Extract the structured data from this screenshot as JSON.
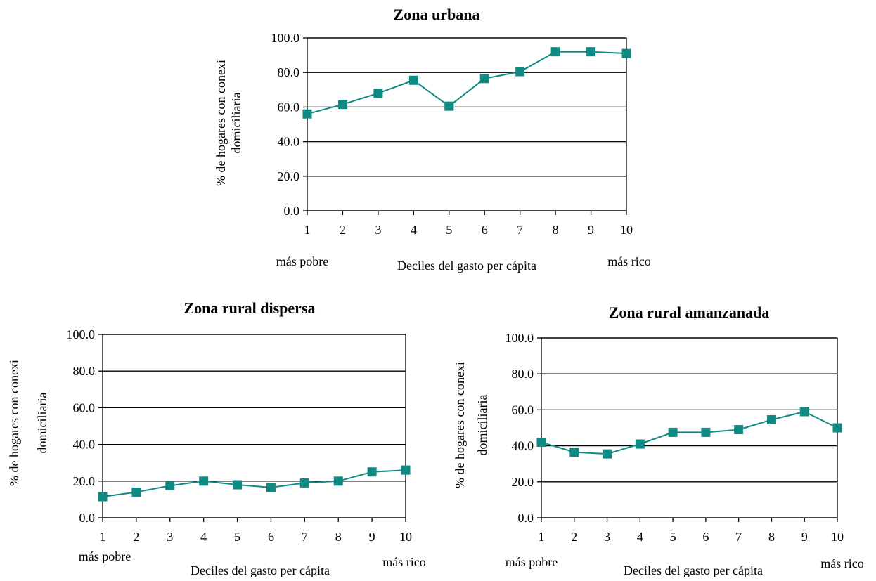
{
  "colors": {
    "series": "#0f8a82",
    "axis": "#000000",
    "background": "#ffffff"
  },
  "chart_data": [
    {
      "type": "line",
      "title": "Zona urbana",
      "xlabel": "Deciles del gasto per cápita",
      "ylabel_lines": [
        "% de hogares con conexi",
        "domiciliaria"
      ],
      "x_left_note": "más pobre",
      "x_right_note": "más rico",
      "categories": [
        "1",
        "2",
        "3",
        "4",
        "5",
        "6",
        "7",
        "8",
        "9",
        "10"
      ],
      "yticks": [
        "0.0",
        "20.0",
        "40.0",
        "60.0",
        "80.0",
        "100.0"
      ],
      "ylim": [
        0,
        100
      ],
      "grid": true,
      "marker": "square",
      "values": [
        56.0,
        61.5,
        68.0,
        75.5,
        60.5,
        76.5,
        80.5,
        92.0,
        92.0,
        91.0
      ]
    },
    {
      "type": "line",
      "title": "Zona rural dispersa",
      "xlabel": "Deciles del gasto per cápita",
      "ylabel_lines": [
        "% de hogares con conexi",
        "domiciliaria"
      ],
      "x_left_note": "más pobre",
      "x_right_note": "más rico",
      "categories": [
        "1",
        "2",
        "3",
        "4",
        "5",
        "6",
        "7",
        "8",
        "9",
        "10"
      ],
      "yticks": [
        "0.0",
        "20.0",
        "40.0",
        "60.0",
        "80.0",
        "100.0"
      ],
      "ylim": [
        0,
        100
      ],
      "grid": true,
      "marker": "square",
      "values": [
        11.5,
        14.0,
        17.5,
        20.0,
        18.0,
        16.5,
        19.0,
        20.0,
        25.0,
        26.0
      ]
    },
    {
      "type": "line",
      "title": "Zona rural amanzanada",
      "xlabel": "Deciles del gasto per cápita",
      "ylabel_lines": [
        "% de hogares con conexi",
        "domiciliaria"
      ],
      "x_left_note": "más pobre",
      "x_right_note": "más rico",
      "categories": [
        "1",
        "2",
        "3",
        "4",
        "5",
        "6",
        "7",
        "8",
        "9",
        "10"
      ],
      "yticks": [
        "0.0",
        "20.0",
        "40.0",
        "60.0",
        "80.0",
        "100.0"
      ],
      "ylim": [
        0,
        100
      ],
      "grid": true,
      "marker": "square",
      "values": [
        42.0,
        36.5,
        35.5,
        41.0,
        47.5,
        47.5,
        49.0,
        54.5,
        59.0,
        50.0
      ]
    }
  ]
}
